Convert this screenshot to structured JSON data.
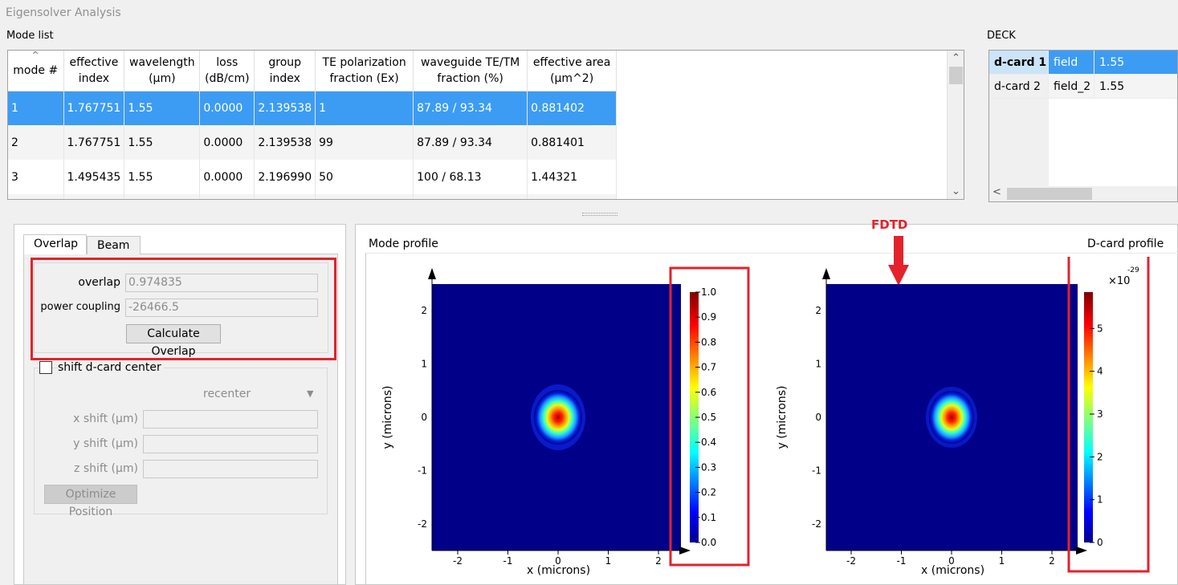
{
  "window": {
    "title": "Eigensolver Analysis"
  },
  "mode_list": {
    "label": "Mode list",
    "columns": [
      {
        "line1": "mode #",
        "line2": ""
      },
      {
        "line1": "effective",
        "line2": "index"
      },
      {
        "line1": "wavelength",
        "line2": "(µm)"
      },
      {
        "line1": "loss",
        "line2": "(dB/cm)"
      },
      {
        "line1": "group",
        "line2": "index"
      },
      {
        "line1": "TE polarization",
        "line2": "fraction (Ex)"
      },
      {
        "line1": "waveguide TE/TM",
        "line2": "fraction (%)"
      },
      {
        "line1": "effective area",
        "line2": "(µm^2)"
      }
    ],
    "rows": [
      [
        "1",
        "1.767751",
        "1.55",
        "0.0000",
        "2.139538",
        "1",
        "87.89 / 93.34",
        "0.881402"
      ],
      [
        "2",
        "1.767751",
        "1.55",
        "0.0000",
        "2.139538",
        "99",
        "87.89 / 93.34",
        "0.881401"
      ],
      [
        "3",
        "1.495435",
        "1.55",
        "0.0000",
        "2.196990",
        "50",
        "100 / 68.13",
        "1.44321"
      ]
    ],
    "selected_row": 1
  },
  "deck": {
    "label": "DECK",
    "rows": [
      [
        "d-card 1",
        "field",
        "1.55"
      ],
      [
        "d-card 2",
        "field_2",
        "1.55"
      ]
    ]
  },
  "tabs": [
    "Overlap",
    "Beam"
  ],
  "overlap": {
    "overlap_label": "overlap",
    "overlap_value": "0.974835",
    "power_label": "power coupling",
    "power_value": "-26466.5",
    "calc_button": "Calculate Overlap"
  },
  "shift": {
    "checkbox_label": "shift d-card center",
    "dropdown_value": "recenter",
    "x_label": "x shift (µm)",
    "y_label": "y shift (µm)",
    "z_label": "z shift (µm)",
    "optimize_button": "Optimize Position"
  },
  "annotation": {
    "fdtd_label": "FDTD"
  },
  "plots": {
    "mode": {
      "title": "Mode profile",
      "xlabel": "x (microns)",
      "ylabel": "y (microns)",
      "x_ticks": [
        "-2",
        "-1",
        "0",
        "1",
        "2"
      ],
      "y_ticks": [
        "2",
        "1",
        "0",
        "-1",
        "-2"
      ],
      "colorbar_ticks": [
        "1.0",
        "0.9",
        "0.8",
        "0.7",
        "0.6",
        "0.5",
        "0.4",
        "0.3",
        "0.2",
        "0.1",
        "0.0"
      ]
    },
    "dcard": {
      "title": "D-card profile",
      "xlabel": "x (microns)",
      "ylabel": "y (microns)",
      "x_ticks": [
        "-2",
        "-1",
        "0",
        "1",
        "2"
      ],
      "y_ticks": [
        "2",
        "1",
        "0",
        "-1",
        "-2"
      ],
      "colorbar_ticks": [
        "5",
        "4",
        "3",
        "2",
        "1",
        "0"
      ],
      "scale_base": "×10",
      "scale_exp": "-29"
    }
  },
  "colors": {
    "plot_bg": "#000088",
    "selection": "#3c9cf4",
    "highlight": "#e3222c"
  }
}
